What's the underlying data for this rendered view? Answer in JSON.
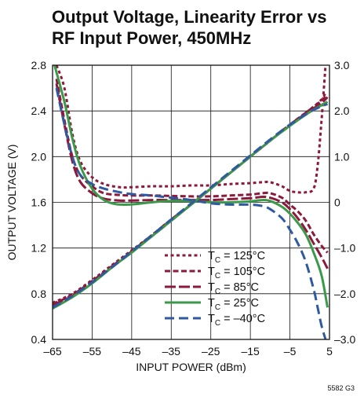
{
  "header": {
    "title_line1": "Output Voltage, Linearity Error vs",
    "title_line2": "RF Input Power, 450MHz"
  },
  "footer": {
    "code": "5582 G3"
  },
  "chart_data": {
    "type": "line",
    "title": "Output Voltage, Linearity Error vs RF Input Power, 450MHz",
    "xlabel": "INPUT POWER (dBm)",
    "ylabel": "OUTPUT VOLTAGE (V)",
    "y2label": "",
    "xlim": [
      -65,
      5
    ],
    "ylim": [
      0.4,
      2.8
    ],
    "y2lim": [
      -3.0,
      3.0
    ],
    "x_ticks": [
      "–65",
      "–55",
      "–45",
      "–35",
      "–25",
      "–15",
      "–5",
      "5"
    ],
    "y_ticks": [
      "0.4",
      "0.8",
      "1.2",
      "1.6",
      "2.0",
      "2.4",
      "2.8"
    ],
    "y2_ticks": [
      "–3.0",
      "–2.0",
      "–1.0",
      "0",
      "1.0",
      "2.0",
      "3.0"
    ],
    "grid": true,
    "legend_position": "bottom-right",
    "series": [
      {
        "name": "T C = 125°C",
        "sub": "C",
        "label_pre": "T",
        "label_post": " = 125°C",
        "color": "#8b1a3c",
        "dash": "4,3.5",
        "axis": "y2",
        "x": [
          -64,
          -62,
          -60,
          -58,
          -55,
          -52,
          -48,
          -45,
          -40,
          -35,
          -30,
          -25,
          -20,
          -15,
          -12,
          -10,
          -7,
          -5,
          -3,
          -1,
          1,
          2,
          3,
          4
        ],
        "y": [
          3.0,
          2.5,
          1.5,
          0.9,
          0.55,
          0.4,
          0.33,
          0.33,
          0.35,
          0.35,
          0.37,
          0.37,
          0.4,
          0.42,
          0.44,
          0.44,
          0.35,
          0.25,
          0.22,
          0.22,
          0.3,
          0.8,
          1.8,
          3.0
        ]
      },
      {
        "name": "T C = 105°C",
        "sub": "C",
        "label_pre": "T",
        "label_post": " = 105°C",
        "color": "#8b1a3c",
        "dash": "7,3.5",
        "axis": "y2",
        "x": [
          -64,
          -62,
          -60,
          -58,
          -55,
          -52,
          -48,
          -45,
          -40,
          -35,
          -30,
          -25,
          -20,
          -15,
          -12,
          -10,
          -7,
          -5,
          -3,
          -1,
          1,
          3,
          4.5
        ],
        "y": [
          2.7,
          1.8,
          1.0,
          0.6,
          0.35,
          0.2,
          0.16,
          0.15,
          0.15,
          0.14,
          0.13,
          0.13,
          0.15,
          0.17,
          0.2,
          0.2,
          0.1,
          -0.05,
          -0.2,
          -0.4,
          -0.7,
          -0.95,
          -1.1
        ]
      },
      {
        "name": "T C = 85°C",
        "sub": "C",
        "label_pre": "T",
        "label_post": " = 85°C",
        "color": "#8b1a3c",
        "dash": "14,4",
        "axis": "y2",
        "x": [
          -64,
          -62,
          -60,
          -58,
          -55,
          -52,
          -48,
          -45,
          -40,
          -35,
          -30,
          -25,
          -20,
          -15,
          -12,
          -10,
          -7,
          -5,
          -3,
          -1,
          1,
          3,
          4.5
        ],
        "y": [
          2.6,
          1.7,
          0.9,
          0.45,
          0.2,
          0.08,
          0.04,
          0.04,
          0.05,
          0.05,
          0.05,
          0.05,
          0.07,
          0.09,
          0.12,
          0.1,
          0.0,
          -0.15,
          -0.35,
          -0.6,
          -0.9,
          -1.2,
          -1.45
        ]
      },
      {
        "name": "T C = 25°C",
        "sub": "C",
        "label_pre": "T",
        "label_post": " = 25°C",
        "color": "#3a9a4a",
        "dash": "",
        "axis": "y2",
        "x": [
          -64.5,
          -62,
          -60,
          -58,
          -55,
          -52,
          -49,
          -46,
          -43,
          -40,
          -35,
          -30,
          -25,
          -20,
          -15,
          -12,
          -10,
          -7,
          -5,
          -3,
          -1,
          1,
          3,
          4.5
        ],
        "y": [
          3.0,
          2.2,
          1.4,
          0.8,
          0.3,
          0.05,
          -0.04,
          -0.05,
          -0.03,
          0.0,
          0.03,
          0.03,
          0.0,
          0.0,
          0.02,
          0.05,
          0.03,
          -0.1,
          -0.25,
          -0.45,
          -0.7,
          -1.1,
          -1.6,
          -2.3
        ]
      },
      {
        "name": "T C = –40°C",
        "sub": "C",
        "label_pre": "T",
        "label_post": " = –40°C",
        "color": "#2f5aa0",
        "dash": "12,6",
        "axis": "y2",
        "x": [
          -64,
          -62,
          -60,
          -58,
          -55,
          -52,
          -48,
          -45,
          -40,
          -35,
          -30,
          -25,
          -20,
          -15,
          -12,
          -10,
          -7,
          -5,
          -3,
          -1,
          1,
          2,
          3,
          4
        ],
        "y": [
          2.5,
          1.7,
          1.0,
          0.6,
          0.4,
          0.3,
          0.22,
          0.18,
          0.15,
          0.1,
          0.05,
          -0.02,
          -0.05,
          -0.05,
          -0.08,
          -0.15,
          -0.35,
          -0.6,
          -0.9,
          -1.3,
          -1.9,
          -2.3,
          -2.7,
          -3.0
        ]
      },
      {
        "name": "OUTPUT VOLTAGE 125°C",
        "color": "#8b1a3c",
        "dash": "4,3.5",
        "axis": "y",
        "legend": false,
        "x": [
          -65,
          -60,
          -55,
          -50,
          -45,
          -40,
          -35,
          -30,
          -25,
          -20,
          -15,
          -10,
          -5,
          0,
          3,
          4
        ],
        "y": [
          0.72,
          0.8,
          0.92,
          1.05,
          1.18,
          1.31,
          1.45,
          1.58,
          1.72,
          1.86,
          2.0,
          2.14,
          2.28,
          2.41,
          2.5,
          2.56
        ]
      },
      {
        "name": "OUTPUT VOLTAGE 105°C",
        "color": "#8b1a3c",
        "dash": "7,3.5",
        "axis": "y",
        "legend": false,
        "x": [
          -65,
          -60,
          -55,
          -50,
          -45,
          -40,
          -35,
          -30,
          -25,
          -20,
          -15,
          -10,
          -5,
          0,
          3,
          4.5
        ],
        "y": [
          0.71,
          0.79,
          0.91,
          1.04,
          1.17,
          1.31,
          1.45,
          1.58,
          1.72,
          1.86,
          2.0,
          2.14,
          2.28,
          2.41,
          2.49,
          2.54
        ]
      },
      {
        "name": "OUTPUT VOLTAGE 85°C",
        "color": "#8b1a3c",
        "dash": "14,4",
        "axis": "y",
        "legend": false,
        "x": [
          -65,
          -60,
          -55,
          -50,
          -45,
          -40,
          -35,
          -30,
          -25,
          -20,
          -15,
          -10,
          -5,
          0,
          3,
          4.5
        ],
        "y": [
          0.7,
          0.78,
          0.9,
          1.03,
          1.17,
          1.3,
          1.44,
          1.58,
          1.72,
          1.86,
          2.0,
          2.14,
          2.28,
          2.4,
          2.47,
          2.52
        ]
      },
      {
        "name": "OUTPUT VOLTAGE 25°C",
        "color": "#3a9a4a",
        "dash": "",
        "axis": "y",
        "legend": false,
        "x": [
          -65,
          -60,
          -55,
          -50,
          -45,
          -40,
          -35,
          -30,
          -25,
          -20,
          -15,
          -10,
          -5,
          0,
          3,
          4.5
        ],
        "y": [
          0.67,
          0.77,
          0.89,
          1.03,
          1.16,
          1.3,
          1.44,
          1.58,
          1.72,
          1.86,
          2.0,
          2.14,
          2.27,
          2.39,
          2.45,
          2.48
        ]
      },
      {
        "name": "OUTPUT VOLTAGE -40°C",
        "color": "#2f5aa0",
        "dash": "12,6",
        "axis": "y",
        "legend": false,
        "x": [
          -65,
          -60,
          -55,
          -50,
          -45,
          -40,
          -35,
          -30,
          -25,
          -20,
          -15,
          -10,
          -5,
          0,
          3,
          4.5
        ],
        "y": [
          0.68,
          0.78,
          0.9,
          1.03,
          1.17,
          1.31,
          1.45,
          1.59,
          1.73,
          1.87,
          2.01,
          2.15,
          2.28,
          2.39,
          2.44,
          2.46
        ]
      }
    ]
  }
}
